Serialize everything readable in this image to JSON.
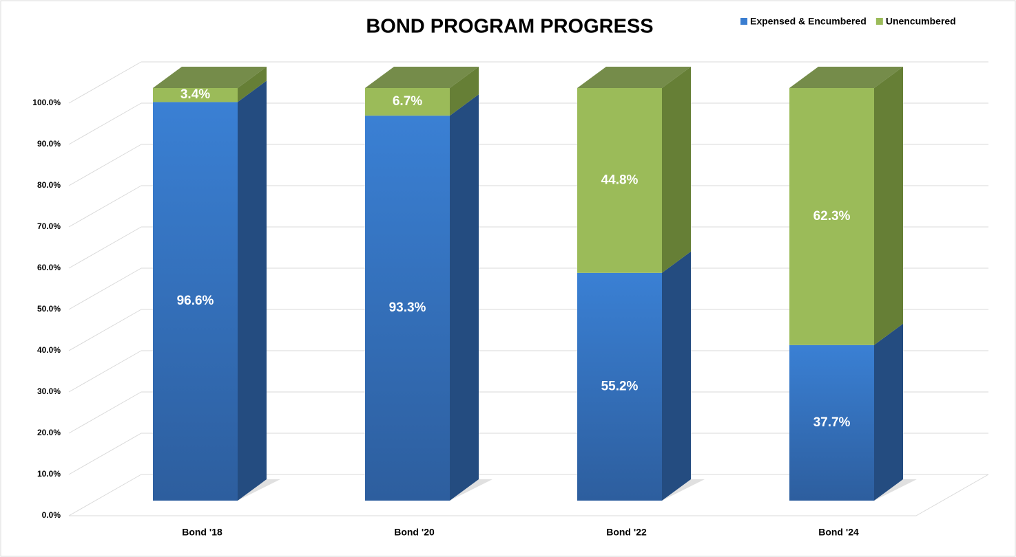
{
  "chart_data": {
    "type": "bar",
    "stacked": true,
    "title": "BOND PROGRAM PROGRESS",
    "categories": [
      "Bond '18",
      "Bond '20",
      "Bond '22",
      "Bond '24"
    ],
    "series": [
      {
        "name": "Expensed & Encumbered",
        "color": "#3a7dd0",
        "side_color": "#244c80",
        "values": [
          96.6,
          93.3,
          55.2,
          37.7
        ],
        "value_labels": [
          "96.6%",
          "93.3%",
          "55.2%",
          "37.7%"
        ]
      },
      {
        "name": "Unencumbered",
        "color": "#9bbb59",
        "side_color": "#667f36",
        "values": [
          3.4,
          6.7,
          44.8,
          62.3
        ],
        "value_labels": [
          "3.4%",
          "6.7%",
          "44.8%",
          "62.3%"
        ]
      }
    ],
    "ylim": [
      0,
      100
    ],
    "yticks": [
      {
        "value": 0,
        "label": "0.0%"
      },
      {
        "value": 10,
        "label": "10.0%"
      },
      {
        "value": 20,
        "label": "20.0%"
      },
      {
        "value": 30,
        "label": "30.0%"
      },
      {
        "value": 40,
        "label": "40.0%"
      },
      {
        "value": 50,
        "label": "50.0%"
      },
      {
        "value": 60,
        "label": "60.0%"
      },
      {
        "value": 70,
        "label": "70.0%"
      },
      {
        "value": 80,
        "label": "80.0%"
      },
      {
        "value": 90,
        "label": "90.0%"
      },
      {
        "value": 100,
        "label": "100.0%"
      }
    ],
    "grid": true,
    "legend": "top-right"
  }
}
